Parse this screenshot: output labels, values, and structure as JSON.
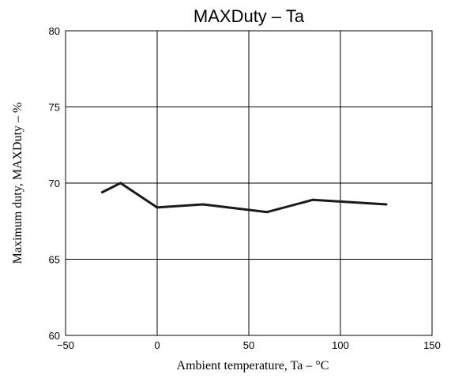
{
  "chart_data": {
    "type": "line",
    "title": "MAXDuty  –  Ta",
    "xlabel": "Ambient temperature,  Ta  –  °C",
    "ylabel": "Maximum duty, MAXDuty  –  %",
    "xlim": [
      -50,
      150
    ],
    "ylim": [
      60,
      80
    ],
    "xticks": [
      -50,
      0,
      50,
      100,
      150
    ],
    "yticks": [
      60,
      65,
      70,
      75,
      80
    ],
    "xtick_labels": [
      "−50",
      "0",
      "50",
      "100",
      "150"
    ],
    "ytick_labels": [
      "60",
      "65",
      "70",
      "75",
      "80"
    ],
    "grid": true,
    "legend": "none",
    "series": [
      {
        "x": [
          -30,
          -20,
          0,
          25,
          60,
          85,
          125
        ],
        "y": [
          69.4,
          70.0,
          68.4,
          68.6,
          68.1,
          68.9,
          68.6
        ],
        "color": "#1a1a1a"
      }
    ]
  }
}
